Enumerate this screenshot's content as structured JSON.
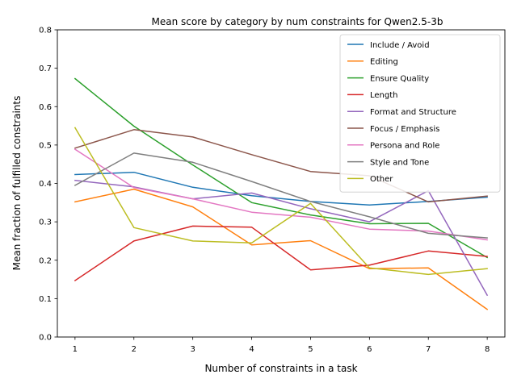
{
  "chart_data": {
    "type": "line",
    "title": "Mean score by category by num constraints for Qwen2.5-3b",
    "xlabel": "Number of constraints in a task",
    "ylabel": "Mean fraction of fulfilled constraints",
    "x": [
      1,
      2,
      3,
      4,
      5,
      6,
      7,
      8
    ],
    "x_ticks": [
      "1",
      "2",
      "3",
      "4",
      "5",
      "6",
      "7",
      "8"
    ],
    "xlim": [
      0.7,
      8.3
    ],
    "ylim": [
      0.0,
      0.8
    ],
    "y_ticks": [
      "0.0",
      "0.1",
      "0.2",
      "0.3",
      "0.4",
      "0.5",
      "0.6",
      "0.7",
      "0.8"
    ],
    "legend_position": "top-right",
    "grid": false,
    "series": [
      {
        "name": "Include / Avoid",
        "color": "#1f77b4",
        "values": [
          0.423,
          0.429,
          0.39,
          0.368,
          0.353,
          0.344,
          0.353,
          0.364
        ]
      },
      {
        "name": "Editing",
        "color": "#ff7f0e",
        "values": [
          0.352,
          0.385,
          0.339,
          0.24,
          0.251,
          0.178,
          0.18,
          0.072
        ]
      },
      {
        "name": "Ensure Quality",
        "color": "#2ca02c",
        "values": [
          0.673,
          0.549,
          0.448,
          0.35,
          0.318,
          0.295,
          0.296,
          0.207
        ]
      },
      {
        "name": "Length",
        "color": "#d62728",
        "values": [
          0.147,
          0.25,
          0.289,
          0.286,
          0.175,
          0.187,
          0.224,
          0.21
        ]
      },
      {
        "name": "Format and Structure",
        "color": "#9467bd",
        "values": [
          0.408,
          0.391,
          0.36,
          0.375,
          0.334,
          0.3,
          0.381,
          0.109
        ]
      },
      {
        "name": "Focus / Emphasis",
        "color": "#8c564b",
        "values": [
          0.492,
          0.54,
          0.521,
          0.475,
          0.431,
          0.42,
          0.352,
          0.367
        ]
      },
      {
        "name": "Persona and Role",
        "color": "#e377c2",
        "values": [
          0.489,
          0.389,
          0.36,
          0.325,
          0.312,
          0.281,
          0.276,
          0.253
        ]
      },
      {
        "name": "Style and Tone",
        "color": "#7f7f7f",
        "values": [
          0.395,
          0.479,
          0.455,
          0.405,
          0.353,
          0.313,
          0.27,
          0.258
        ]
      },
      {
        "name": "Other",
        "color": "#bcbd22",
        "values": [
          0.545,
          0.285,
          0.25,
          0.245,
          0.348,
          0.18,
          0.163,
          0.178
        ]
      }
    ]
  }
}
